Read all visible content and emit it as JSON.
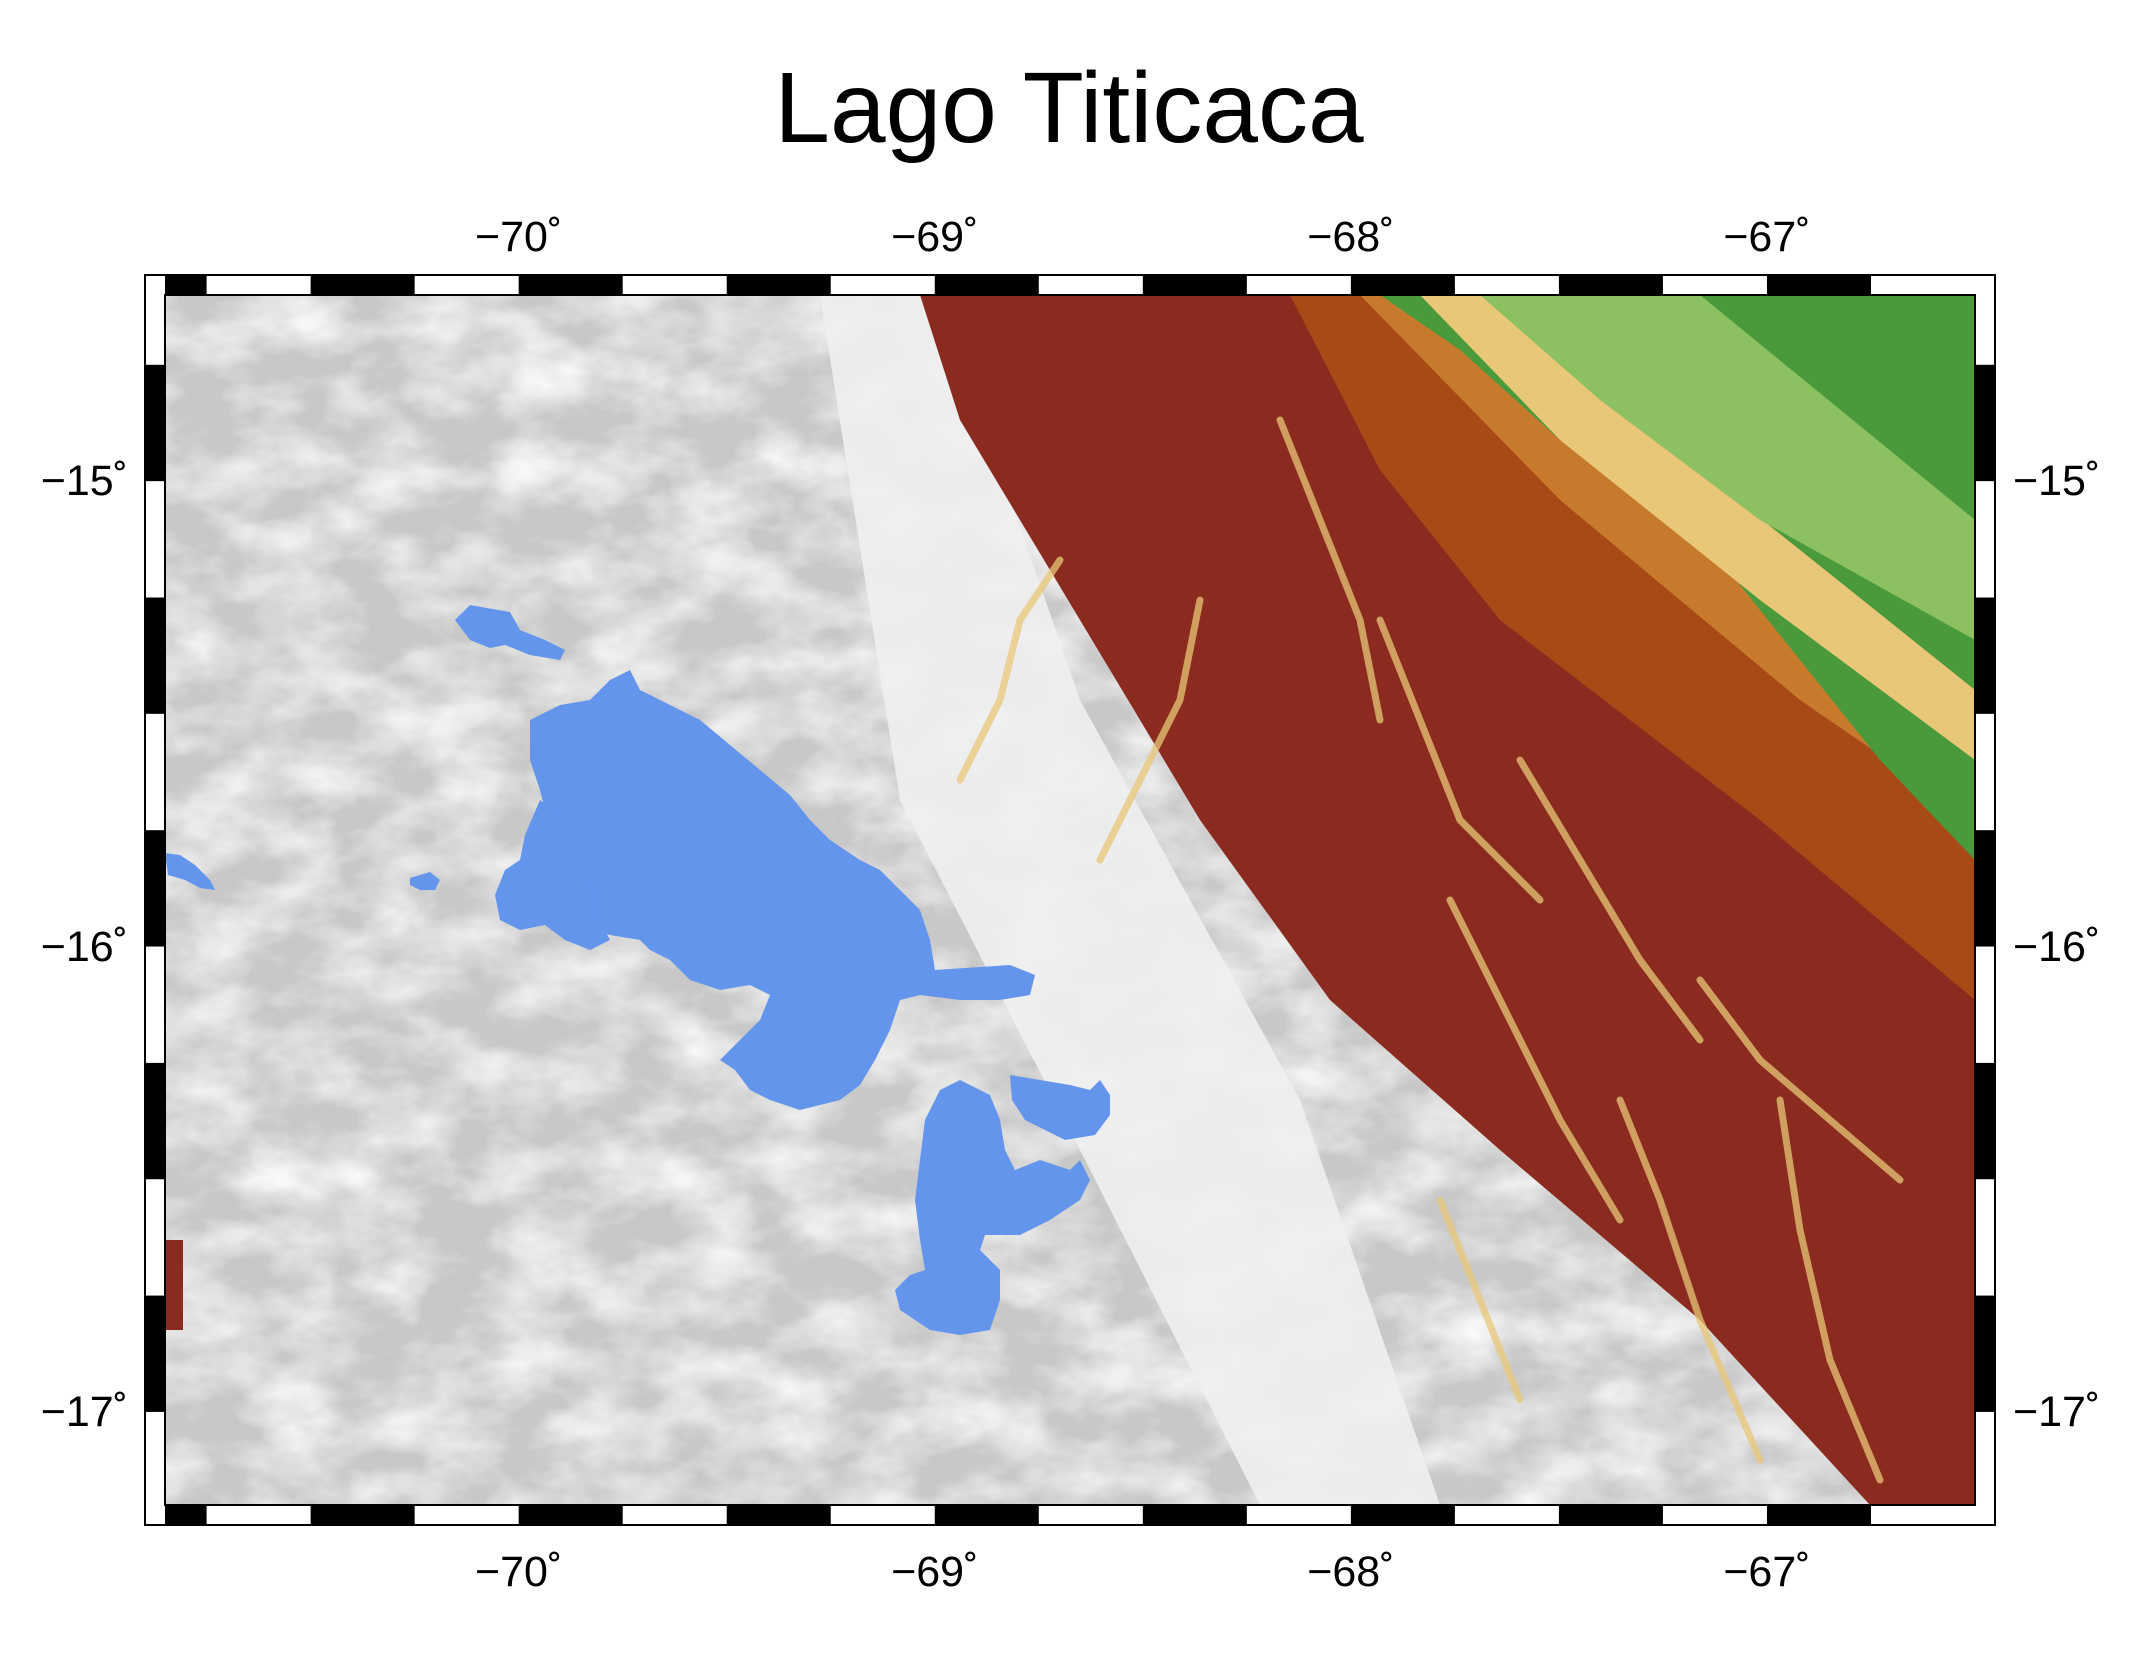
{
  "title": "Lago Titicaca",
  "map": {
    "lon_range": [
      -70.85,
      -66.5
    ],
    "lat_range": [
      -17.2,
      -14.6
    ],
    "lon_ticks": [
      -70,
      -69,
      -68,
      -67
    ],
    "lat_ticks": [
      -15,
      -16,
      -17
    ],
    "lon_tick_labels": [
      "−70˚",
      "−69˚",
      "−68˚",
      "−67˚"
    ],
    "lat_tick_labels": [
      "−15˚",
      "−16˚",
      "−17˚"
    ],
    "frame": "fancy black-and-white checker border",
    "lake_name_shown": "Lago Titicaca",
    "relief_colors": {
      "altiplano_high": "#c8c8c8",
      "altiplano_light": "#efefef",
      "peak_white": "#ffffff",
      "ridge_dark_red": "#8b2a1f",
      "slope_brown": "#a84a15",
      "slope_orange": "#c87a2c",
      "foothill_tan": "#e8c878",
      "lowland_light_green": "#8cc060",
      "lowland_green": "#4a9a3c",
      "water": "#6495ed"
    }
  }
}
